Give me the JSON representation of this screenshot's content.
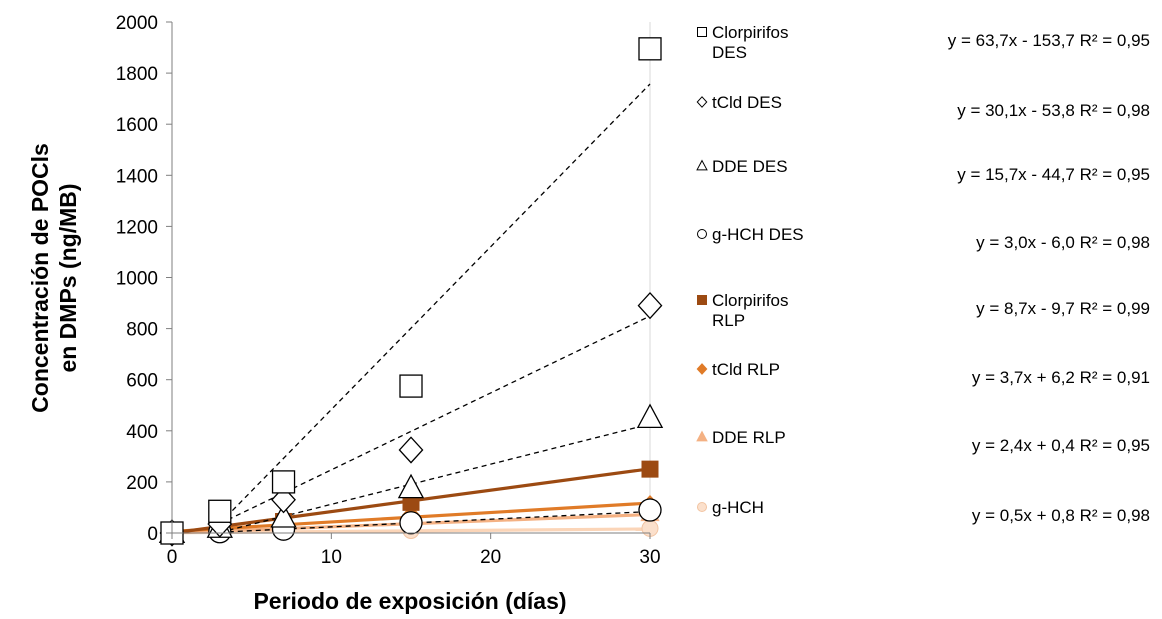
{
  "chart_data": {
    "type": "scatter",
    "title": "",
    "xlabel": "Periodo de exposición (días)",
    "ylabel_lines": [
      "Concentración de POCls",
      "en DMPs (ng/MB)"
    ],
    "xlim": [
      0,
      30
    ],
    "ylim": [
      0,
      2000
    ],
    "x_ticks": [
      0,
      10,
      20,
      30
    ],
    "y_ticks": [
      0,
      200,
      400,
      600,
      800,
      1000,
      1200,
      1400,
      1600,
      1800,
      2000
    ],
    "grid": "vertical-at-right-edge",
    "legend_position": "right",
    "series": [
      {
        "name_lines": [
          "Clorpirifos",
          "DES"
        ],
        "marker": "square",
        "fill": "#ffffff",
        "stroke": "#000000",
        "x": [
          0,
          3,
          7,
          15,
          30
        ],
        "y": [
          0,
          85,
          200,
          575,
          1895
        ],
        "trend": {
          "type": "dashed",
          "slope": 63.7,
          "intercept": -153.7,
          "x_from": 3,
          "x_to": 30,
          "color": "#000000"
        },
        "equation": "y = 63,7x - 153,7 R² = 0,95"
      },
      {
        "name_lines": [
          "tCld DES"
        ],
        "marker": "diamond",
        "fill": "#ffffff",
        "stroke": "#000000",
        "x": [
          0,
          3,
          7,
          15,
          30
        ],
        "y": [
          0,
          35,
          130,
          325,
          890
        ],
        "trend": {
          "type": "dashed",
          "slope": 30.1,
          "intercept": -53.8,
          "x_from": 3,
          "x_to": 30,
          "color": "#000000"
        },
        "equation": "y = 30,1x - 53,8 R² = 0,98"
      },
      {
        "name_lines": [
          "DDE DES"
        ],
        "marker": "triangle",
        "fill": "#ffffff",
        "stroke": "#000000",
        "x": [
          0,
          3,
          7,
          15,
          30
        ],
        "y": [
          0,
          20,
          60,
          175,
          450
        ],
        "trend": {
          "type": "dashed",
          "slope": 15.7,
          "intercept": -44.7,
          "x_from": 3,
          "x_to": 30,
          "color": "#000000"
        },
        "equation": "y = 15,7x - 44,7 R² = 0,95"
      },
      {
        "name_lines": [
          "g-HCH DES"
        ],
        "marker": "circle",
        "fill": "#ffffff",
        "stroke": "#000000",
        "x": [
          0,
          3,
          7,
          15,
          30
        ],
        "y": [
          0,
          5,
          15,
          40,
          90
        ],
        "trend": {
          "type": "dashed",
          "slope": 3.0,
          "intercept": -6.0,
          "x_from": 3,
          "x_to": 30,
          "color": "#000000"
        },
        "equation": "y = 3,0x - 6,0 R² = 0,98"
      },
      {
        "name_lines": [
          "Clorpirifos",
          "RLP"
        ],
        "marker": "square",
        "fill": "#9c4a12",
        "stroke": "#9c4a12",
        "x": [
          0,
          3,
          7,
          15,
          30
        ],
        "y": [
          0,
          20,
          45,
          120,
          250
        ],
        "trend": {
          "type": "solid",
          "slope": 8.7,
          "intercept": -9.7,
          "x_from": 0,
          "x_to": 30,
          "color": "#9c4a12"
        },
        "equation": "y = 8,7x - 9,7 R² = 0,99"
      },
      {
        "name_lines": [
          "tCld RLP"
        ],
        "marker": "diamond",
        "fill": "#e07b28",
        "stroke": "#e07b28",
        "x": [
          0,
          3,
          7,
          15,
          30
        ],
        "y": [
          0,
          15,
          30,
          70,
          110
        ],
        "trend": {
          "type": "solid",
          "slope": 3.7,
          "intercept": 6.2,
          "x_from": 0,
          "x_to": 30,
          "color": "#e07b28"
        },
        "equation": "y = 3,7x + 6,2 R² = 0,91"
      },
      {
        "name_lines": [
          "DDE RLP"
        ],
        "marker": "triangle",
        "fill": "#f4b183",
        "stroke": "#f4b183",
        "x": [
          0,
          3,
          7,
          15,
          30
        ],
        "y": [
          0,
          10,
          20,
          40,
          75
        ],
        "trend": {
          "type": "solid",
          "slope": 2.4,
          "intercept": 0.4,
          "x_from": 0,
          "x_to": 30,
          "color": "#f4b183"
        },
        "equation": "y = 2,4x + 0,4 R² = 0,95"
      },
      {
        "name_lines": [
          "g-HCH"
        ],
        "marker": "circle",
        "fill": "#fbe0cc",
        "stroke": "#f2c4a2",
        "x": [
          0,
          3,
          7,
          15,
          30
        ],
        "y": [
          0,
          3,
          5,
          10,
          18
        ],
        "trend": {
          "type": "solid",
          "slope": 0.5,
          "intercept": 0.8,
          "x_from": 0,
          "x_to": 30,
          "color": "#fbd5b8"
        },
        "equation": "y = 0,5x + 0,8 R² = 0,98"
      }
    ]
  }
}
